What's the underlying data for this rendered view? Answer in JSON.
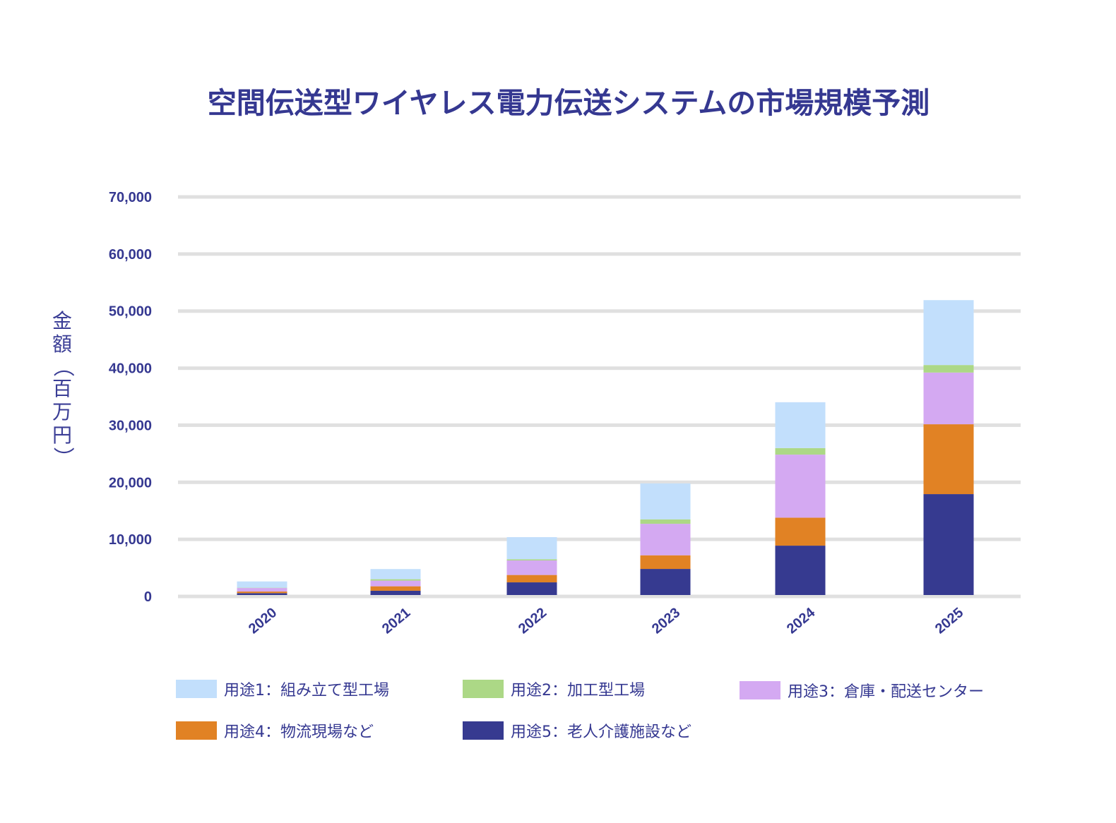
{
  "chart_data": {
    "type": "bar",
    "stacked": true,
    "title": "空間伝送型ワイヤレス電力伝送システムの市場規模予測",
    "xlabel": "",
    "ylabel": "金額（百万円）",
    "ylabel_chars": [
      "金",
      "額",
      "（",
      "百",
      "万",
      "円",
      "）"
    ],
    "ylim": [
      0,
      70000
    ],
    "yticks": [
      0,
      10000,
      20000,
      30000,
      40000,
      50000,
      60000,
      70000
    ],
    "ytick_labels": [
      "0",
      "10,000",
      "20,000",
      "30,000",
      "40,000",
      "50,000",
      "60,000",
      "70,000"
    ],
    "grid": true,
    "legend_position": "bottom",
    "categories": [
      "2020",
      "2021",
      "2022",
      "2023",
      "2024",
      "2025"
    ],
    "series": [
      {
        "name": "用途5：老人介護施設など",
        "color": "#363a90",
        "values": [
          330,
          750,
          2220,
          4570,
          8650,
          17680
        ]
      },
      {
        "name": "用途4：物流現場など",
        "color": "#e18224",
        "values": [
          280,
          780,
          1290,
          2390,
          4900,
          12240
        ]
      },
      {
        "name": "用途3：倉庫・配送センター",
        "color": "#d4a9f2",
        "values": [
          620,
          990,
          2550,
          5520,
          11050,
          9060
        ]
      },
      {
        "name": "用途2：加工型工場",
        "color": "#acd886",
        "values": [
          50,
          250,
          210,
          780,
          1150,
          1320
        ]
      },
      {
        "name": "用途1：組み立て型工場",
        "color": "#c2dffc",
        "values": [
          1100,
          1780,
          3870,
          6300,
          8030,
          11370
        ]
      }
    ],
    "legend_order": [
      4,
      3,
      2,
      1,
      0
    ]
  }
}
